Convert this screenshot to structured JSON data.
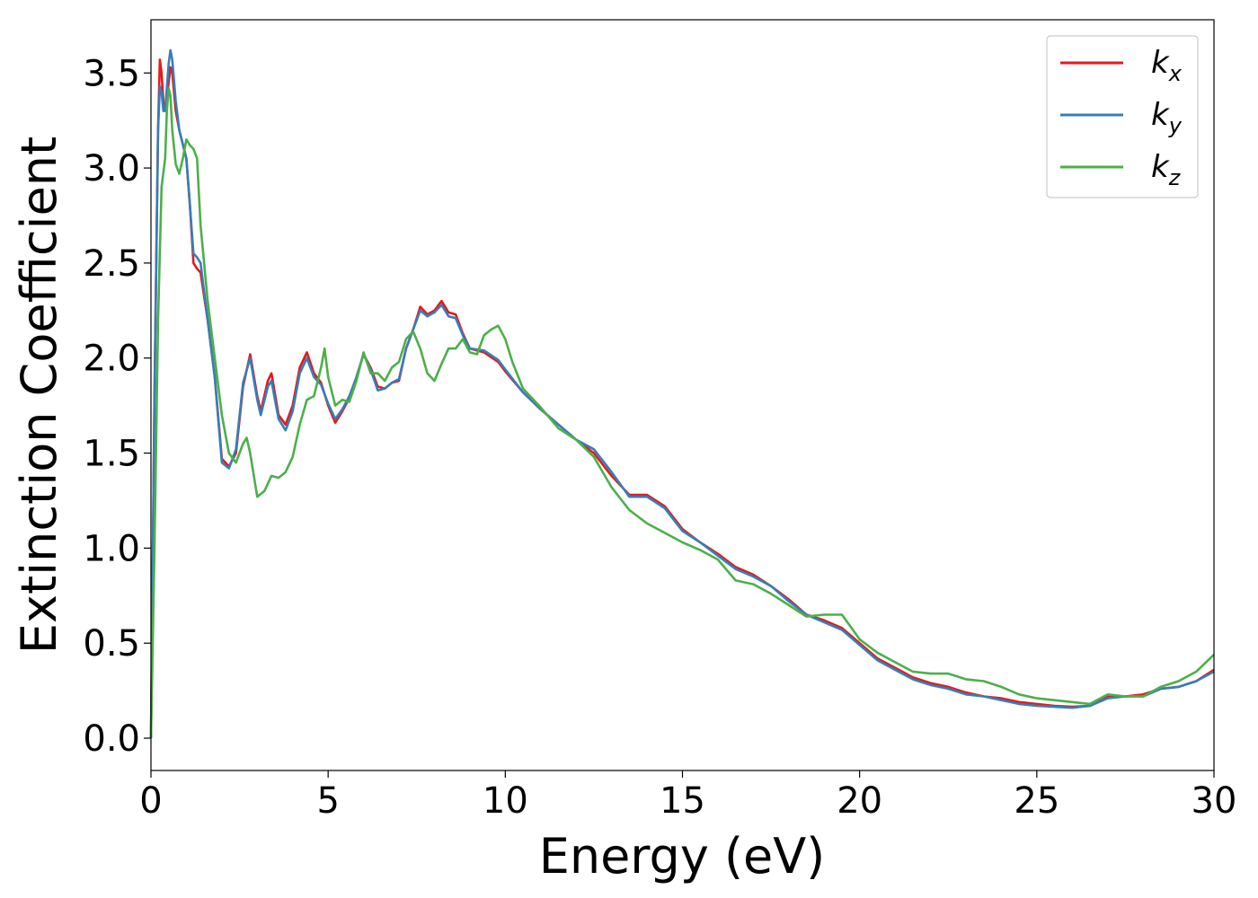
{
  "chart_data": {
    "type": "line",
    "xlabel": "Energy (eV)",
    "ylabel": "Extinction Coefficient",
    "xlim": [
      0,
      30
    ],
    "ylim": [
      -0.17,
      3.78
    ],
    "xticks": [
      0,
      5,
      10,
      15,
      20,
      25,
      30
    ],
    "xtick_labels": [
      "0",
      "5",
      "10",
      "15",
      "20",
      "25",
      "30"
    ],
    "yticks": [
      0.0,
      0.5,
      1.0,
      1.5,
      2.0,
      2.5,
      3.0,
      3.5
    ],
    "ytick_labels": [
      "0.0",
      "0.5",
      "1.0",
      "1.5",
      "2.0",
      "2.5",
      "3.0",
      "3.5"
    ],
    "grid": false,
    "legend_position": "top-right",
    "series": [
      {
        "name": "k_x",
        "label_main": "k",
        "label_sub": "x",
        "color": "#e41a1c",
        "points": [
          [
            0,
            0
          ],
          [
            0.1,
            1.8
          ],
          [
            0.2,
            3.2
          ],
          [
            0.25,
            3.57
          ],
          [
            0.3,
            3.5
          ],
          [
            0.35,
            3.35
          ],
          [
            0.4,
            3.3
          ],
          [
            0.5,
            3.45
          ],
          [
            0.55,
            3.53
          ],
          [
            0.6,
            3.5
          ],
          [
            0.7,
            3.3
          ],
          [
            0.8,
            3.2
          ],
          [
            1.0,
            3.05
          ],
          [
            1.1,
            2.8
          ],
          [
            1.2,
            2.5
          ],
          [
            1.3,
            2.47
          ],
          [
            1.4,
            2.45
          ],
          [
            1.6,
            2.2
          ],
          [
            1.8,
            1.9
          ],
          [
            2.0,
            1.47
          ],
          [
            2.2,
            1.43
          ],
          [
            2.4,
            1.5
          ],
          [
            2.6,
            1.85
          ],
          [
            2.8,
            2.02
          ],
          [
            3.0,
            1.8
          ],
          [
            3.1,
            1.72
          ],
          [
            3.3,
            1.88
          ],
          [
            3.4,
            1.92
          ],
          [
            3.6,
            1.7
          ],
          [
            3.8,
            1.65
          ],
          [
            4.0,
            1.75
          ],
          [
            4.2,
            1.95
          ],
          [
            4.4,
            2.03
          ],
          [
            4.6,
            1.92
          ],
          [
            4.8,
            1.87
          ],
          [
            5.0,
            1.75
          ],
          [
            5.2,
            1.66
          ],
          [
            5.4,
            1.72
          ],
          [
            5.6,
            1.79
          ],
          [
            5.8,
            1.9
          ],
          [
            6.0,
            2.02
          ],
          [
            6.2,
            1.95
          ],
          [
            6.4,
            1.85
          ],
          [
            6.6,
            1.84
          ],
          [
            6.8,
            1.87
          ],
          [
            7.0,
            1.88
          ],
          [
            7.2,
            2.05
          ],
          [
            7.4,
            2.15
          ],
          [
            7.6,
            2.27
          ],
          [
            7.8,
            2.23
          ],
          [
            8.0,
            2.25
          ],
          [
            8.2,
            2.3
          ],
          [
            8.4,
            2.24
          ],
          [
            8.6,
            2.23
          ],
          [
            8.8,
            2.13
          ],
          [
            9.0,
            2.05
          ],
          [
            9.4,
            2.03
          ],
          [
            9.8,
            1.98
          ],
          [
            10.0,
            1.93
          ],
          [
            10.5,
            1.82
          ],
          [
            11.0,
            1.73
          ],
          [
            11.5,
            1.65
          ],
          [
            12.0,
            1.57
          ],
          [
            12.5,
            1.5
          ],
          [
            13.0,
            1.38
          ],
          [
            13.5,
            1.28
          ],
          [
            14.0,
            1.28
          ],
          [
            14.5,
            1.22
          ],
          [
            15.0,
            1.1
          ],
          [
            15.5,
            1.03
          ],
          [
            16.0,
            0.97
          ],
          [
            16.5,
            0.9
          ],
          [
            17.0,
            0.86
          ],
          [
            17.5,
            0.8
          ],
          [
            18.0,
            0.73
          ],
          [
            18.5,
            0.65
          ],
          [
            19.0,
            0.62
          ],
          [
            19.5,
            0.58
          ],
          [
            20.0,
            0.5
          ],
          [
            20.5,
            0.42
          ],
          [
            21.0,
            0.37
          ],
          [
            21.5,
            0.32
          ],
          [
            22.0,
            0.29
          ],
          [
            22.5,
            0.27
          ],
          [
            23.0,
            0.24
          ],
          [
            23.5,
            0.22
          ],
          [
            24.0,
            0.21
          ],
          [
            24.5,
            0.19
          ],
          [
            25.0,
            0.18
          ],
          [
            25.5,
            0.17
          ],
          [
            26.0,
            0.165
          ],
          [
            26.5,
            0.17
          ],
          [
            27.0,
            0.22
          ],
          [
            27.5,
            0.22
          ],
          [
            28.0,
            0.23
          ],
          [
            28.5,
            0.26
          ],
          [
            29.0,
            0.27
          ],
          [
            29.5,
            0.3
          ],
          [
            30.0,
            0.36
          ]
        ]
      },
      {
        "name": "k_y",
        "label_main": "k",
        "label_sub": "y",
        "color": "#377eb8",
        "points": [
          [
            0,
            0
          ],
          [
            0.1,
            1.8
          ],
          [
            0.2,
            3.2
          ],
          [
            0.25,
            3.43
          ],
          [
            0.3,
            3.4
          ],
          [
            0.35,
            3.3
          ],
          [
            0.4,
            3.3
          ],
          [
            0.5,
            3.55
          ],
          [
            0.55,
            3.62
          ],
          [
            0.6,
            3.57
          ],
          [
            0.7,
            3.35
          ],
          [
            0.8,
            3.2
          ],
          [
            1.0,
            3.05
          ],
          [
            1.1,
            2.8
          ],
          [
            1.2,
            2.55
          ],
          [
            1.3,
            2.53
          ],
          [
            1.4,
            2.5
          ],
          [
            1.6,
            2.2
          ],
          [
            1.8,
            1.9
          ],
          [
            2.0,
            1.45
          ],
          [
            2.2,
            1.42
          ],
          [
            2.4,
            1.52
          ],
          [
            2.6,
            1.87
          ],
          [
            2.8,
            2.0
          ],
          [
            3.0,
            1.78
          ],
          [
            3.1,
            1.7
          ],
          [
            3.3,
            1.85
          ],
          [
            3.4,
            1.88
          ],
          [
            3.6,
            1.68
          ],
          [
            3.8,
            1.62
          ],
          [
            4.0,
            1.72
          ],
          [
            4.2,
            1.92
          ],
          [
            4.4,
            2.0
          ],
          [
            4.6,
            1.9
          ],
          [
            4.8,
            1.86
          ],
          [
            5.0,
            1.76
          ],
          [
            5.2,
            1.68
          ],
          [
            5.4,
            1.73
          ],
          [
            5.6,
            1.8
          ],
          [
            5.8,
            1.9
          ],
          [
            6.0,
            2.02
          ],
          [
            6.2,
            1.94
          ],
          [
            6.4,
            1.83
          ],
          [
            6.6,
            1.84
          ],
          [
            6.8,
            1.87
          ],
          [
            7.0,
            1.89
          ],
          [
            7.2,
            2.05
          ],
          [
            7.4,
            2.15
          ],
          [
            7.6,
            2.25
          ],
          [
            7.8,
            2.22
          ],
          [
            8.0,
            2.24
          ],
          [
            8.2,
            2.28
          ],
          [
            8.4,
            2.22
          ],
          [
            8.6,
            2.21
          ],
          [
            8.8,
            2.12
          ],
          [
            9.0,
            2.05
          ],
          [
            9.4,
            2.04
          ],
          [
            9.8,
            1.99
          ],
          [
            10.0,
            1.94
          ],
          [
            10.5,
            1.82
          ],
          [
            11.0,
            1.73
          ],
          [
            11.5,
            1.65
          ],
          [
            12.0,
            1.57
          ],
          [
            12.5,
            1.52
          ],
          [
            13.0,
            1.4
          ],
          [
            13.5,
            1.27
          ],
          [
            14.0,
            1.27
          ],
          [
            14.5,
            1.21
          ],
          [
            15.0,
            1.09
          ],
          [
            15.5,
            1.03
          ],
          [
            16.0,
            0.96
          ],
          [
            16.5,
            0.89
          ],
          [
            17.0,
            0.85
          ],
          [
            17.5,
            0.8
          ],
          [
            18.0,
            0.72
          ],
          [
            18.5,
            0.65
          ],
          [
            19.0,
            0.61
          ],
          [
            19.5,
            0.57
          ],
          [
            20.0,
            0.49
          ],
          [
            20.5,
            0.41
          ],
          [
            21.0,
            0.36
          ],
          [
            21.5,
            0.31
          ],
          [
            22.0,
            0.28
          ],
          [
            22.5,
            0.26
          ],
          [
            23.0,
            0.23
          ],
          [
            23.5,
            0.22
          ],
          [
            24.0,
            0.2
          ],
          [
            24.5,
            0.18
          ],
          [
            25.0,
            0.17
          ],
          [
            25.5,
            0.165
          ],
          [
            26.0,
            0.16
          ],
          [
            26.5,
            0.17
          ],
          [
            27.0,
            0.21
          ],
          [
            27.5,
            0.22
          ],
          [
            28.0,
            0.22
          ],
          [
            28.5,
            0.26
          ],
          [
            29.0,
            0.27
          ],
          [
            29.5,
            0.3
          ],
          [
            30.0,
            0.35
          ]
        ]
      },
      {
        "name": "k_z",
        "label_main": "k",
        "label_sub": "z",
        "color": "#4daf4a",
        "points": [
          [
            0,
            0
          ],
          [
            0.1,
            1.0
          ],
          [
            0.2,
            2.2
          ],
          [
            0.3,
            2.9
          ],
          [
            0.4,
            3.05
          ],
          [
            0.45,
            3.3
          ],
          [
            0.5,
            3.42
          ],
          [
            0.55,
            3.38
          ],
          [
            0.6,
            3.2
          ],
          [
            0.7,
            3.02
          ],
          [
            0.8,
            2.97
          ],
          [
            0.9,
            3.05
          ],
          [
            1.0,
            3.15
          ],
          [
            1.1,
            3.12
          ],
          [
            1.2,
            3.1
          ],
          [
            1.3,
            3.05
          ],
          [
            1.4,
            2.7
          ],
          [
            1.6,
            2.3
          ],
          [
            1.8,
            2.0
          ],
          [
            2.0,
            1.7
          ],
          [
            2.2,
            1.5
          ],
          [
            2.4,
            1.45
          ],
          [
            2.6,
            1.55
          ],
          [
            2.7,
            1.58
          ],
          [
            2.8,
            1.5
          ],
          [
            3.0,
            1.27
          ],
          [
            3.2,
            1.3
          ],
          [
            3.4,
            1.38
          ],
          [
            3.6,
            1.37
          ],
          [
            3.8,
            1.4
          ],
          [
            4.0,
            1.48
          ],
          [
            4.2,
            1.65
          ],
          [
            4.4,
            1.78
          ],
          [
            4.6,
            1.8
          ],
          [
            4.8,
            1.95
          ],
          [
            4.9,
            2.05
          ],
          [
            5.0,
            1.9
          ],
          [
            5.2,
            1.75
          ],
          [
            5.4,
            1.78
          ],
          [
            5.6,
            1.77
          ],
          [
            5.8,
            1.88
          ],
          [
            6.0,
            2.03
          ],
          [
            6.2,
            1.92
          ],
          [
            6.4,
            1.92
          ],
          [
            6.6,
            1.88
          ],
          [
            6.8,
            1.95
          ],
          [
            7.0,
            1.98
          ],
          [
            7.2,
            2.1
          ],
          [
            7.4,
            2.14
          ],
          [
            7.6,
            2.05
          ],
          [
            7.8,
            1.92
          ],
          [
            8.0,
            1.88
          ],
          [
            8.2,
            1.97
          ],
          [
            8.4,
            2.05
          ],
          [
            8.6,
            2.05
          ],
          [
            8.8,
            2.1
          ],
          [
            9.0,
            2.03
          ],
          [
            9.2,
            2.02
          ],
          [
            9.4,
            2.12
          ],
          [
            9.6,
            2.15
          ],
          [
            9.8,
            2.17
          ],
          [
            10.0,
            2.1
          ],
          [
            10.2,
            1.98
          ],
          [
            10.5,
            1.84
          ],
          [
            11.0,
            1.74
          ],
          [
            11.5,
            1.63
          ],
          [
            12.0,
            1.57
          ],
          [
            12.5,
            1.48
          ],
          [
            13.0,
            1.32
          ],
          [
            13.5,
            1.2
          ],
          [
            14.0,
            1.13
          ],
          [
            14.5,
            1.08
          ],
          [
            15.0,
            1.03
          ],
          [
            15.5,
            0.99
          ],
          [
            16.0,
            0.94
          ],
          [
            16.5,
            0.83
          ],
          [
            17.0,
            0.81
          ],
          [
            17.5,
            0.76
          ],
          [
            18.0,
            0.7
          ],
          [
            18.5,
            0.64
          ],
          [
            19.0,
            0.65
          ],
          [
            19.5,
            0.65
          ],
          [
            20.0,
            0.52
          ],
          [
            20.5,
            0.45
          ],
          [
            21.0,
            0.4
          ],
          [
            21.5,
            0.35
          ],
          [
            22.0,
            0.34
          ],
          [
            22.5,
            0.34
          ],
          [
            23.0,
            0.31
          ],
          [
            23.5,
            0.3
          ],
          [
            24.0,
            0.27
          ],
          [
            24.5,
            0.23
          ],
          [
            25.0,
            0.21
          ],
          [
            25.5,
            0.2
          ],
          [
            26.0,
            0.19
          ],
          [
            26.5,
            0.18
          ],
          [
            27.0,
            0.23
          ],
          [
            27.5,
            0.22
          ],
          [
            28.0,
            0.22
          ],
          [
            28.5,
            0.27
          ],
          [
            29.0,
            0.3
          ],
          [
            29.5,
            0.35
          ],
          [
            30.0,
            0.44
          ]
        ]
      }
    ]
  }
}
